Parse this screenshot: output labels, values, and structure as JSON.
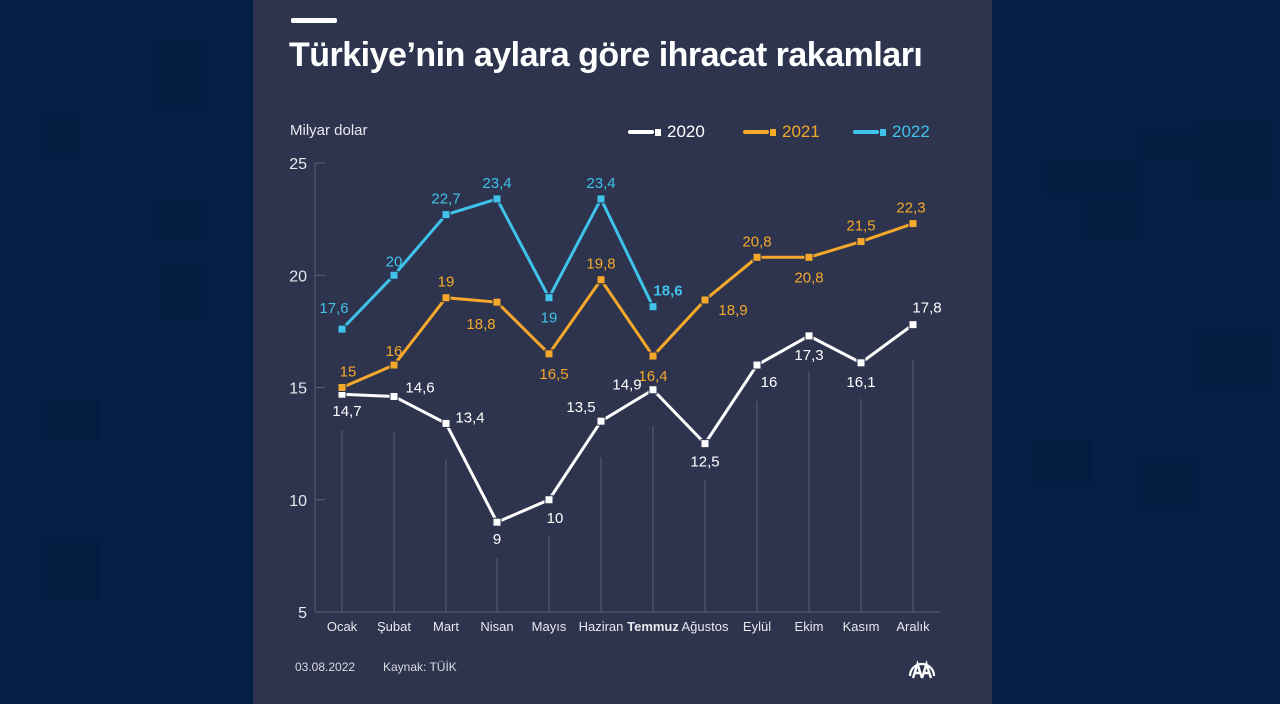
{
  "header": {
    "title": "Türkiye’nin aylara göre ihracat rakamları"
  },
  "unit_label": "Milyar dolar",
  "legend": [
    {
      "label": "2020",
      "color": "#ffffff"
    },
    {
      "label": "2021",
      "color": "#f5a82a"
    },
    {
      "label": "2022",
      "color": "#3fc3ea"
    }
  ],
  "footer": {
    "date": "03.08.2022",
    "source": "Kaynak: TÜİK",
    "logo_icon": "anadolu-agency-logo-icon"
  },
  "colors": {
    "background": "#031f45",
    "card": "#2e344e",
    "series_2020": "#ffffff",
    "series_2021": "#f5a82a",
    "series_2022": "#3fc3ea",
    "axis": "#5a6079",
    "text": "#e8e9ee"
  },
  "chart_data": {
    "type": "line",
    "title": "Türkiye’nin aylara göre ihracat rakamları",
    "xlabel": "",
    "ylabel": "Milyar dolar",
    "ylim": [
      5,
      25
    ],
    "yticks": [
      5,
      10,
      15,
      20,
      25
    ],
    "grid": false,
    "legend_position": "top-right",
    "categories": [
      "Ocak",
      "Şubat",
      "Mart",
      "Nisan",
      "Mayıs",
      "Haziran",
      "Temmuz",
      "Ağustos",
      "Eylül",
      "Ekim",
      "Kasım",
      "Aralık"
    ],
    "highlighted_category": "Temmuz",
    "series": [
      {
        "name": "2020",
        "color": "#ffffff",
        "values": [
          14.7,
          14.6,
          13.4,
          9,
          10,
          13.5,
          14.9,
          12.5,
          16,
          17.3,
          16.1,
          17.8
        ],
        "labels": [
          "14,7",
          "14,6",
          "13,4",
          "9",
          "10",
          "13,5",
          "14,9",
          "12,5",
          "16",
          "17,3",
          "16,1",
          "17,8"
        ]
      },
      {
        "name": "2021",
        "color": "#f5a82a",
        "values": [
          15,
          16,
          19,
          18.8,
          16.5,
          19.8,
          16.4,
          18.9,
          20.8,
          20.8,
          21.5,
          22.3
        ],
        "labels": [
          "15",
          "16",
          "19",
          "18,8",
          "16,5",
          "19,8",
          "16,4",
          "18,9",
          "20,8",
          "20,8",
          "21,5",
          "22,3"
        ]
      },
      {
        "name": "2022",
        "color": "#3fc3ea",
        "values": [
          17.6,
          20,
          22.7,
          23.4,
          19,
          23.4,
          18.6
        ],
        "labels": [
          "17,6",
          "20",
          "22,7",
          "23,4",
          "19",
          "23,4",
          "18,6"
        ]
      }
    ]
  }
}
